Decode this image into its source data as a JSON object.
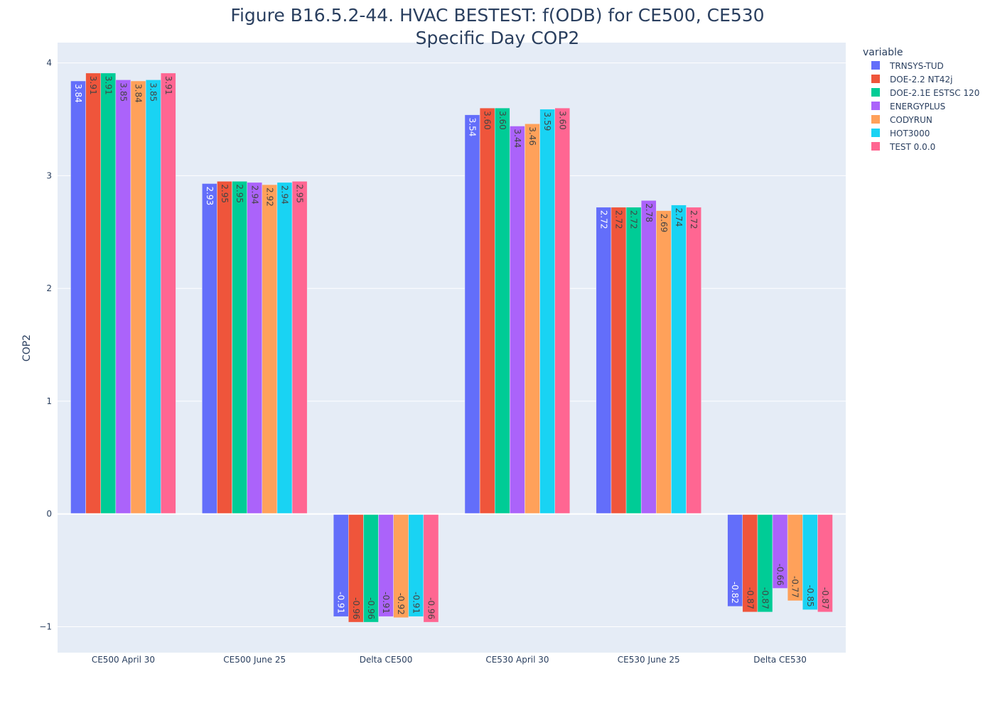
{
  "chart_data": {
    "type": "bar",
    "title": "Figure B16.5.2-44. HVAC BESTEST: f(ODB) for CE500, CE530",
    "subtitle": "Specific Day COP2",
    "xlabel": "",
    "ylabel": "COP2",
    "ylim": [
      -1.23,
      4.18
    ],
    "yticks": [
      -1,
      0,
      1,
      2,
      3,
      4
    ],
    "grid": true,
    "legend": {
      "title": "variable",
      "position": "right"
    },
    "categories": [
      "CE500 April 30",
      "CE500 June 25",
      "Delta CE500",
      "CE530 April 30",
      "CE530 June 25",
      "Delta CE530"
    ],
    "series": [
      {
        "name": "TRNSYS-TUD",
        "color": "#636efa",
        "label_color": "#ffffff",
        "values": [
          3.84,
          2.93,
          -0.91,
          3.54,
          2.72,
          -0.82
        ],
        "labels": [
          "3.84",
          "2.93",
          "-0.91",
          "3.54",
          "2.72",
          "-0.82"
        ]
      },
      {
        "name": "DOE-2.2 NT42j",
        "color": "#ef553b",
        "label_color": "#444444",
        "values": [
          3.91,
          2.95,
          -0.96,
          3.6,
          2.72,
          -0.87
        ],
        "labels": [
          "3.91",
          "2.95",
          "-0.96",
          "3.60",
          "2.72",
          "-0.87"
        ]
      },
      {
        "name": "DOE-2.1E ESTSC 120",
        "color": "#00cc96",
        "label_color": "#444444",
        "values": [
          3.91,
          2.95,
          -0.96,
          3.6,
          2.72,
          -0.87
        ],
        "labels": [
          "3.91",
          "2.95",
          "-0.96",
          "3.60",
          "2.72",
          "-0.87"
        ]
      },
      {
        "name": "ENERGYPLUS",
        "color": "#ab63fa",
        "label_color": "#444444",
        "values": [
          3.85,
          2.94,
          -0.91,
          3.44,
          2.78,
          -0.66
        ],
        "labels": [
          "3.85",
          "2.94",
          "-0.91",
          "3.44",
          "2.78",
          "-0.66"
        ]
      },
      {
        "name": "CODYRUN",
        "color": "#ffa15a",
        "label_color": "#444444",
        "values": [
          3.84,
          2.92,
          -0.92,
          3.46,
          2.69,
          -0.77
        ],
        "labels": [
          "3.84",
          "2.92",
          "-0.92",
          "3.46",
          "2.69",
          "-0.77"
        ]
      },
      {
        "name": "HOT3000",
        "color": "#19d3f3",
        "label_color": "#444444",
        "values": [
          3.85,
          2.94,
          -0.91,
          3.59,
          2.74,
          -0.85
        ],
        "labels": [
          "3.85",
          "2.94",
          "-0.91",
          "3.59",
          "2.74",
          "-0.85"
        ]
      },
      {
        "name": "TEST 0.0.0",
        "color": "#ff6692",
        "label_color": "#444444",
        "values": [
          3.91,
          2.95,
          -0.96,
          3.6,
          2.72,
          -0.87
        ],
        "labels": [
          "3.91",
          "2.95",
          "-0.96",
          "3.60",
          "2.72",
          "-0.87"
        ]
      }
    ]
  }
}
